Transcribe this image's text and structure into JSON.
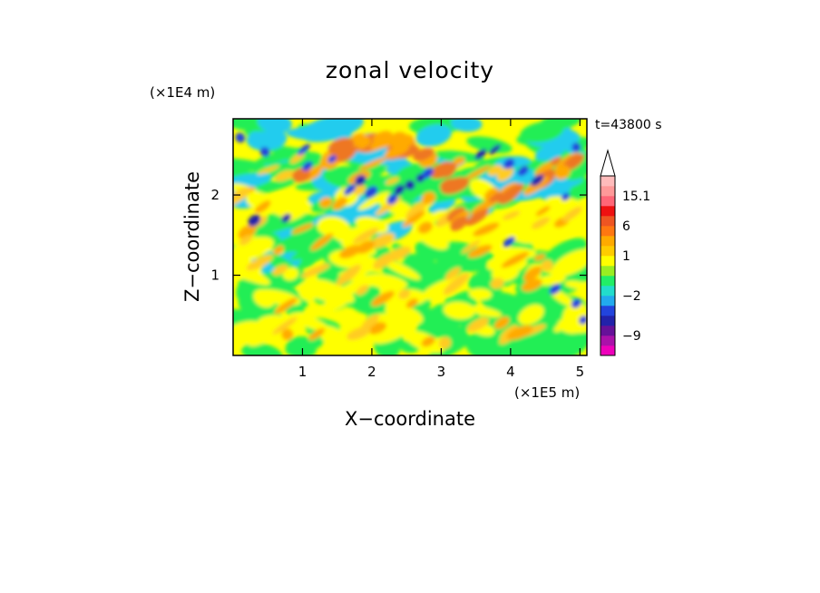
{
  "chart_data": {
    "type": "heatmap",
    "title": "zonal velocity",
    "xlabel": "X−coordinate",
    "ylabel": "Z−coordinate",
    "x_multiplier": "(×1E5 m)",
    "y_multiplier": "(×1E4 m)",
    "time_label": "t=43800 s",
    "xlim": [
      0.0,
      5.1
    ],
    "ylim": [
      0.0,
      2.95
    ],
    "x_ticks": [
      1,
      2,
      3,
      4,
      5
    ],
    "y_ticks": [
      1,
      2
    ],
    "colorbar": {
      "levels": [
        {
          "color": "#ee00bb"
        },
        {
          "color": "#aa11aa"
        },
        {
          "color": "#661199"
        },
        {
          "color": "#2222aa"
        },
        {
          "color": "#2244dd"
        },
        {
          "color": "#22aaee"
        },
        {
          "color": "#22ddcc"
        },
        {
          "color": "#22ee66"
        },
        {
          "color": "#99ee22"
        },
        {
          "color": "#ffff00"
        },
        {
          "color": "#ffcc00"
        },
        {
          "color": "#ffaa00"
        },
        {
          "color": "#ff7711"
        },
        {
          "color": "#ee5522"
        },
        {
          "color": "#ee1111"
        },
        {
          "color": "#ff6677"
        },
        {
          "color": "#ff9999"
        },
        {
          "color": "#ffbbbb"
        }
      ],
      "tick_labels": [
        {
          "text": "15.1",
          "level_index": 16
        },
        {
          "text": "6",
          "level_index": 13
        },
        {
          "text": "1",
          "level_index": 10
        },
        {
          "text": "−2",
          "level_index": 6
        },
        {
          "text": "−9",
          "level_index": 2
        }
      ],
      "extend_max": true
    },
    "field_classes": {
      "magenta": "#ee00bb",
      "dark_blue": "#2222aa",
      "blue": "#2244dd",
      "cyan": "#22ccee",
      "green": "#22ee55",
      "yellow": "#ffff00",
      "light_orange": "#ffcc22",
      "orange": "#ffaa00",
      "red_orange": "#ee7722"
    }
  }
}
